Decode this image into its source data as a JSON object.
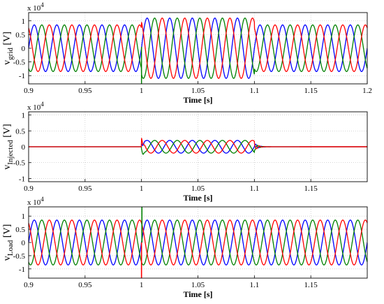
{
  "chart_data": [
    {
      "type": "line",
      "ylabel": {
        "prefix": "v",
        "subscript": "grid",
        "suffix": " [V]"
      },
      "xlabel": "Time [s]",
      "y_exponent": {
        "base": "x 10",
        "power": "4"
      },
      "xlim": [
        0.9,
        1.2
      ],
      "ylim": [
        -1.3,
        1.3
      ],
      "x_ticks": [
        "0.9",
        "0.95",
        "1",
        "1.05",
        "1.1",
        "1.15",
        "1.2"
      ],
      "y_ticks": [
        "1",
        "0.5",
        "0",
        "-0.5",
        "-1"
      ],
      "grid": true,
      "colors": [
        "#0000ff",
        "#008000",
        "#ff0000"
      ],
      "frequency_hz": 50,
      "amplitude_normal": 0.85,
      "amplitude_disturbed": 1.1,
      "disturbance_interval": [
        1.0,
        1.1
      ]
    },
    {
      "type": "line",
      "ylabel": {
        "prefix": "v",
        "subscript": "Injected",
        "suffix": " [V]"
      },
      "xlabel": "Time [s]",
      "y_exponent": {
        "base": "x 10",
        "power": "4"
      },
      "xlim": [
        0.9,
        1.2
      ],
      "ylim": [
        -1.1,
        1.1
      ],
      "x_ticks": [
        "0.9",
        "0.95",
        "1",
        "1.05",
        "1.1",
        "1.15"
      ],
      "y_ticks": [
        "1",
        "0.5",
        "0",
        "-0.5",
        "-1"
      ],
      "grid": true,
      "colors": [
        "#0000ff",
        "#008000",
        "#ff0000"
      ],
      "frequency_hz": 50,
      "injected_amplitude": 0.2,
      "injection_interval": [
        1.0,
        1.1
      ]
    },
    {
      "type": "line",
      "ylabel": {
        "prefix": "v",
        "subscript": "Load",
        "suffix": " [V]"
      },
      "xlabel": "Time [s]",
      "y_exponent": {
        "base": "x 10",
        "power": "4"
      },
      "xlim": [
        0.9,
        1.2
      ],
      "ylim": [
        -1.35,
        1.35
      ],
      "x_ticks": [
        "0.9",
        "0.95",
        "1",
        "1.05",
        "1.1",
        "1.15"
      ],
      "y_ticks": [
        "1",
        "0.5",
        "0",
        "-0.5",
        "-1"
      ],
      "grid": true,
      "colors": [
        "#0000ff",
        "#008000",
        "#ff0000"
      ],
      "frequency_hz": 50,
      "amplitude": 0.85
    }
  ]
}
